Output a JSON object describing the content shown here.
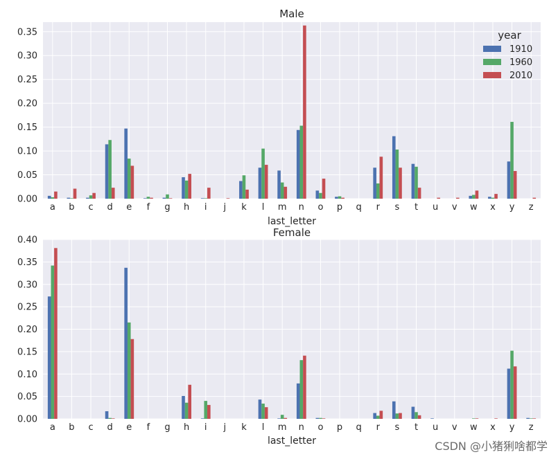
{
  "watermark": "CSDN @小猪猁啥都学",
  "colors": {
    "1910": "#4c72b0",
    "1960": "#55a868",
    "2010": "#c44e52",
    "plot_bg": "#eaeaf2",
    "grid": "#ffffff"
  },
  "chart_data": [
    {
      "type": "bar",
      "title": "Male",
      "xlabel": "last_letter",
      "ylabel": "",
      "ylim": [
        0,
        0.37
      ],
      "yticks": [
        "0.00",
        "0.05",
        "0.10",
        "0.15",
        "0.20",
        "0.25",
        "0.30",
        "0.35"
      ],
      "legend": {
        "title": "year",
        "position": "top-right"
      },
      "categories": [
        "a",
        "b",
        "c",
        "d",
        "e",
        "f",
        "g",
        "h",
        "i",
        "j",
        "k",
        "l",
        "m",
        "n",
        "o",
        "p",
        "q",
        "r",
        "s",
        "t",
        "u",
        "v",
        "w",
        "x",
        "y",
        "z"
      ],
      "series": [
        {
          "name": "1910",
          "color": "#4c72b0",
          "values": [
            0.006,
            0.002,
            0.002,
            0.114,
            0.147,
            0.001,
            0.002,
            0.045,
            0.001,
            0.0,
            0.037,
            0.065,
            0.059,
            0.144,
            0.017,
            0.004,
            0.0,
            0.065,
            0.131,
            0.073,
            0.0,
            0.0,
            0.006,
            0.004,
            0.078,
            0.0
          ]
        },
        {
          "name": "1960",
          "color": "#55a868",
          "values": [
            0.003,
            0.001,
            0.007,
            0.123,
            0.084,
            0.004,
            0.009,
            0.038,
            0.001,
            0.0,
            0.049,
            0.105,
            0.034,
            0.153,
            0.012,
            0.005,
            0.0,
            0.032,
            0.103,
            0.067,
            0.0,
            0.0,
            0.008,
            0.002,
            0.161,
            0.0
          ]
        },
        {
          "name": "2010",
          "color": "#c44e52",
          "values": [
            0.015,
            0.021,
            0.012,
            0.023,
            0.069,
            0.002,
            0.001,
            0.052,
            0.023,
            0.001,
            0.019,
            0.071,
            0.025,
            0.363,
            0.042,
            0.002,
            0.0,
            0.088,
            0.065,
            0.023,
            0.002,
            0.002,
            0.017,
            0.01,
            0.058,
            0.002
          ]
        }
      ]
    },
    {
      "type": "bar",
      "title": "Female",
      "xlabel": "last_letter",
      "ylabel": "",
      "ylim": [
        0,
        0.4
      ],
      "yticks": [
        "0.00",
        "0.05",
        "0.10",
        "0.15",
        "0.20",
        "0.25",
        "0.30",
        "0.35",
        "0.40"
      ],
      "categories": [
        "a",
        "b",
        "c",
        "d",
        "e",
        "f",
        "g",
        "h",
        "i",
        "j",
        "k",
        "l",
        "m",
        "n",
        "o",
        "p",
        "q",
        "r",
        "s",
        "t",
        "u",
        "v",
        "w",
        "x",
        "y",
        "z"
      ],
      "series": [
        {
          "name": "1910",
          "color": "#4c72b0",
          "values": [
            0.273,
            0.0,
            0.0,
            0.017,
            0.337,
            0.0,
            0.0,
            0.051,
            0.001,
            0.0,
            0.0,
            0.043,
            0.001,
            0.079,
            0.002,
            0.0,
            0.0,
            0.013,
            0.039,
            0.027,
            0.001,
            0.0,
            0.0,
            0.0,
            0.112,
            0.002
          ]
        },
        {
          "name": "1960",
          "color": "#55a868",
          "values": [
            0.342,
            0.0,
            0.0,
            0.002,
            0.215,
            0.0,
            0.0,
            0.036,
            0.04,
            0.0,
            0.0,
            0.034,
            0.009,
            0.131,
            0.002,
            0.0,
            0.0,
            0.007,
            0.012,
            0.015,
            0.0,
            0.0,
            0.001,
            0.0,
            0.152,
            0.001
          ]
        },
        {
          "name": "2010",
          "color": "#c44e52",
          "values": [
            0.381,
            0.0,
            0.0,
            0.001,
            0.178,
            0.0,
            0.0,
            0.076,
            0.031,
            0.0,
            0.0,
            0.026,
            0.002,
            0.141,
            0.001,
            0.0,
            0.0,
            0.018,
            0.013,
            0.008,
            0.0,
            0.0,
            0.001,
            0.001,
            0.117,
            0.001
          ]
        }
      ]
    }
  ]
}
